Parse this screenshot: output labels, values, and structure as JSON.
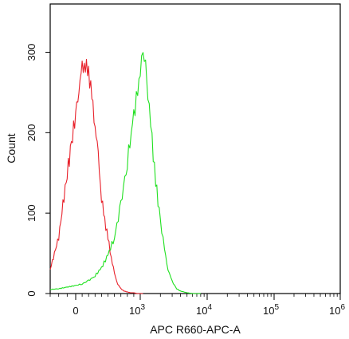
{
  "chart_data": {
    "type": "line",
    "title": "",
    "xlabel": "APC R660-APC-A",
    "ylabel": "Count",
    "x_scale": "biexponential",
    "xlim": [
      -300,
      1000000
    ],
    "ylim": [
      0,
      360
    ],
    "grid": false,
    "legend": "none",
    "x_ticks": [
      {
        "value": 0,
        "label": "0"
      },
      {
        "value": 1000,
        "label": "10",
        "exp": "3"
      },
      {
        "value": 10000,
        "label": "10",
        "exp": "4"
      },
      {
        "value": 100000,
        "label": "10",
        "exp": "5"
      },
      {
        "value": 1000000,
        "label": "10",
        "exp": "6"
      }
    ],
    "y_ticks": [
      {
        "value": 0,
        "label": "0"
      },
      {
        "value": 100,
        "label": "100"
      },
      {
        "value": 200,
        "label": "200"
      },
      {
        "value": 300,
        "label": "300"
      }
    ],
    "series": [
      {
        "color": "#e8212b",
        "x": [
          -300,
          -250,
          -200,
          -150,
          -100,
          -50,
          0,
          50,
          100,
          150,
          200,
          250,
          300,
          350,
          400,
          450,
          500,
          550,
          600,
          650,
          700,
          750,
          800,
          850,
          900,
          950,
          1000,
          1100
        ],
        "y": [
          30,
          50,
          70,
          110,
          150,
          185,
          225,
          255,
          280,
          285,
          275,
          245,
          210,
          170,
          120,
          90,
          70,
          45,
          25,
          12,
          6,
          3,
          2,
          1,
          1,
          0,
          0,
          0
        ]
      },
      {
        "color": "#1fe01f",
        "x": [
          -300,
          -200,
          -100,
          0,
          100,
          200,
          300,
          400,
          500,
          600,
          700,
          800,
          900,
          1000,
          1100,
          1200,
          1300,
          1500,
          1700,
          2000,
          2300,
          2600,
          3000,
          3500,
          4000,
          5000,
          6000,
          8000
        ],
        "y": [
          5,
          6,
          8,
          10,
          12,
          16,
          22,
          32,
          48,
          70,
          110,
          165,
          220,
          275,
          300,
          285,
          250,
          190,
          140,
          90,
          55,
          30,
          15,
          6,
          3,
          1,
          0,
          0
        ]
      }
    ]
  }
}
